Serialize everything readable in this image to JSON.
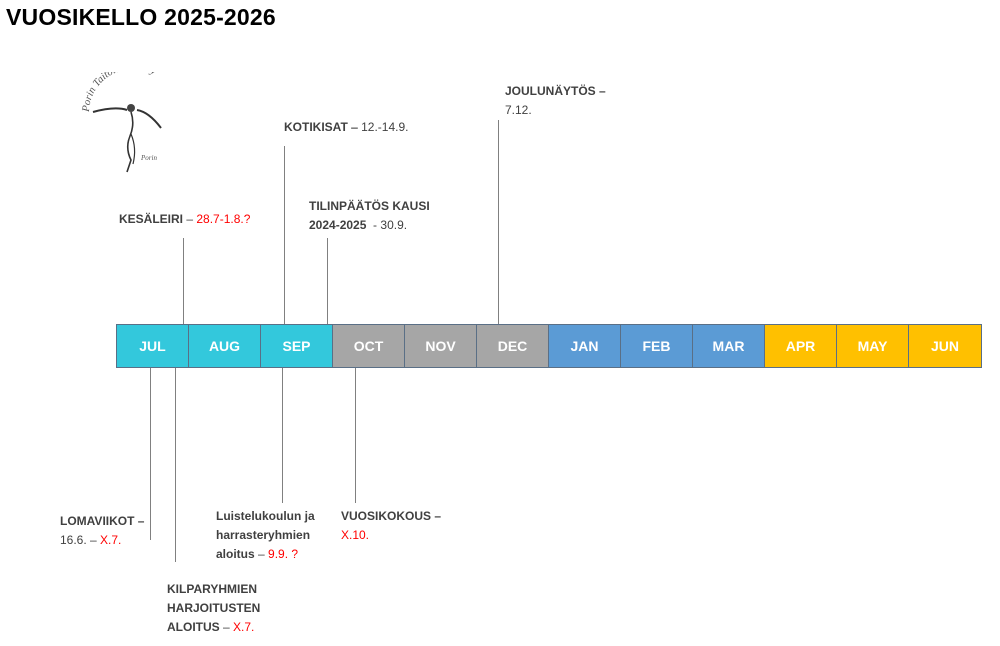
{
  "title": "VUOSIKELLO 2025-2026",
  "logo": {
    "text": "Porin Taitoluistelu ry",
    "subtext": "Porin",
    "icon": "figure-skater-logo-icon"
  },
  "colors": {
    "summer": "#33c8dc",
    "autumn": "#a6a6a6",
    "winter": "#5b9bd5",
    "spring": "#ffc000",
    "highlight": "#ff0000"
  },
  "months": [
    {
      "label": "JUL",
      "season": "summer"
    },
    {
      "label": "AUG",
      "season": "summer"
    },
    {
      "label": "SEP",
      "season": "summer"
    },
    {
      "label": "OCT",
      "season": "autumn"
    },
    {
      "label": "NOV",
      "season": "autumn"
    },
    {
      "label": "DEC",
      "season": "autumn"
    },
    {
      "label": "JAN",
      "season": "winter"
    },
    {
      "label": "FEB",
      "season": "winter"
    },
    {
      "label": "MAR",
      "season": "winter"
    },
    {
      "label": "APR",
      "season": "spring"
    },
    {
      "label": "MAY",
      "season": "spring"
    },
    {
      "label": "JUN",
      "season": "spring"
    }
  ],
  "events": {
    "kesaleiri": {
      "name": "KESÄLEIRI",
      "sep": " – ",
      "date": "28.7-1.8.?"
    },
    "kotikisat": {
      "name": "KOTIKISAT",
      "sep": " – ",
      "date": "12.-14.9."
    },
    "tilinpaatos": {
      "name_line1": "TILINPÄÄTÖS KAUSI",
      "name_line2": "2024-2025",
      "date": "  - 30.9."
    },
    "joulunaytos": {
      "name": "JOULUNÄYTÖS",
      "sep": " –",
      "date": "7.12."
    },
    "lomaviikot": {
      "name": "LOMAVIIKOT",
      "sep": " –",
      "date1": "16.6. – ",
      "date2": "X.7."
    },
    "kilparyhmien": {
      "line1": "KILPARYHMIEN",
      "line2": "HARJOITUSTEN",
      "line3": "ALOITUS",
      "sep": " – ",
      "date": "X.7."
    },
    "luistelukoulu": {
      "line1": "Luistelukoulun ja",
      "line2": "harrasteryhmien",
      "line3": "aloitus",
      "sep": " – ",
      "date": "9.9. ?"
    },
    "vuosikokous": {
      "name": "VUOSIKOKOUS",
      "sep": " –",
      "date": "X.10."
    }
  }
}
